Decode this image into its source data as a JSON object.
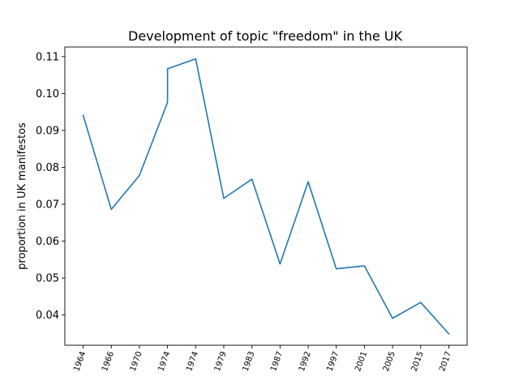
{
  "chart_data": {
    "type": "line",
    "title": "Development of topic \"freedom\" in the UK",
    "xlabel": "",
    "ylabel": "proportion in UK manifestos",
    "categories": [
      "1964",
      "1966",
      "1970",
      "1974",
      "1974",
      "1979",
      "1983",
      "1987",
      "1992",
      "1997",
      "2001",
      "2005",
      "2015",
      "2017"
    ],
    "x": [
      0,
      1,
      2,
      3,
      3,
      4,
      5,
      6,
      7,
      8,
      9,
      10,
      11,
      12,
      13
    ],
    "xtick_positions": [
      0,
      1,
      2,
      3,
      4,
      5,
      6,
      7,
      8,
      9,
      10,
      11,
      12,
      13
    ],
    "series": [
      {
        "values": [
          0.0941,
          0.0686,
          0.0778,
          0.0976,
          0.1067,
          0.1094,
          0.0716,
          0.0768,
          0.0538,
          0.0761,
          0.0525,
          0.0533,
          0.0391,
          0.0434,
          0.0349
        ],
        "color": "#1f77b4"
      }
    ],
    "yticks": [
      0.04,
      0.05,
      0.06,
      0.07,
      0.08,
      0.09,
      0.1,
      0.11
    ],
    "ytick_labels": [
      "0.04",
      "0.05",
      "0.06",
      "0.07",
      "0.08",
      "0.09",
      "0.10",
      "0.11"
    ],
    "ylim": [
      0.0318,
      0.1126
    ],
    "xlim": [
      -0.65,
      13.65
    ],
    "grid": false,
    "legend": false
  }
}
